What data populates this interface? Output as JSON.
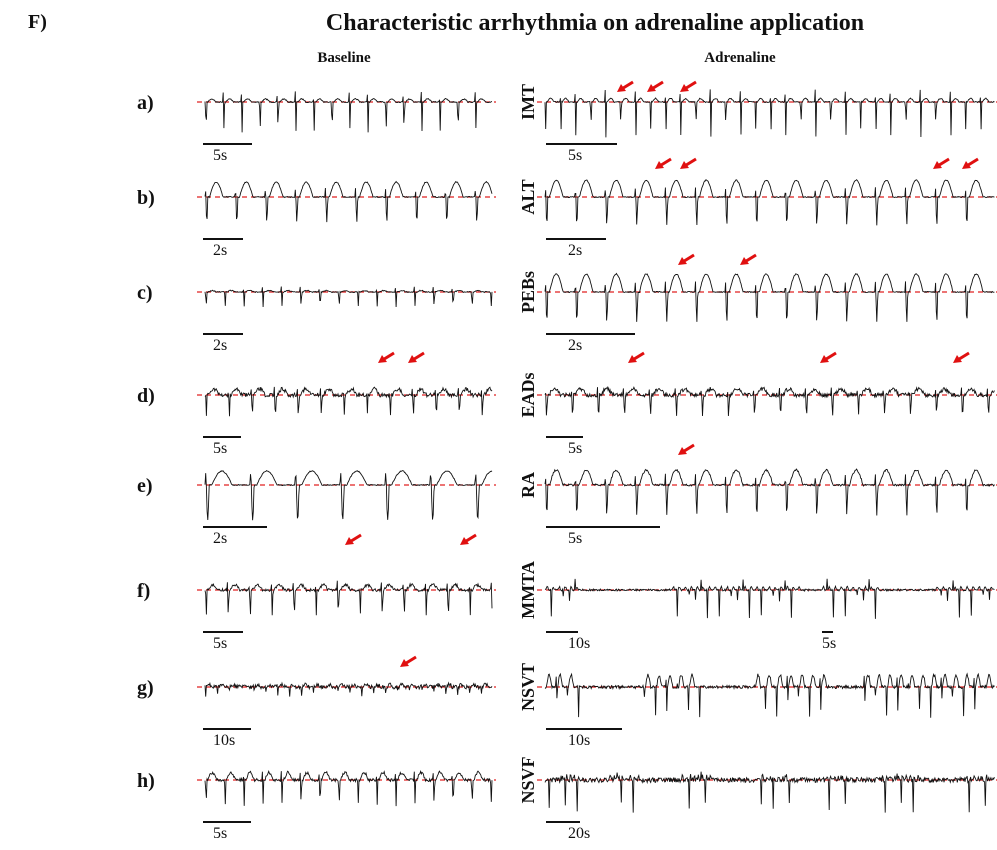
{
  "panel_label": "F)",
  "title": "Characteristic arrhythmia on adrenaline application",
  "column_headers": [
    "Baseline",
    "Adrenaline"
  ],
  "rows": [
    {
      "label": "a)",
      "baseline_scale": "5s",
      "arrhythmia": "IMT",
      "adrenaline_scales": [
        "5s"
      ]
    },
    {
      "label": "b)",
      "baseline_scale": "2s",
      "arrhythmia": "ALT",
      "adrenaline_scales": [
        "2s"
      ]
    },
    {
      "label": "c)",
      "baseline_scale": "2s",
      "arrhythmia": "PEBs",
      "adrenaline_scales": [
        "2s"
      ]
    },
    {
      "label": "d)",
      "baseline_scale": "5s",
      "arrhythmia": "EADs",
      "adrenaline_scales": [
        "5s"
      ]
    },
    {
      "label": "e)",
      "baseline_scale": "2s",
      "arrhythmia": "RA",
      "adrenaline_scales": [
        "5s"
      ]
    },
    {
      "label": "f)",
      "baseline_scale": "5s",
      "arrhythmia": "MMTA",
      "adrenaline_scales": [
        "10s",
        "5s"
      ]
    },
    {
      "label": "g)",
      "baseline_scale": "10s",
      "arrhythmia": "NSVT",
      "adrenaline_scales": [
        "10s"
      ]
    },
    {
      "label": "h)",
      "baseline_scale": "5s",
      "arrhythmia": "NSVF",
      "adrenaline_scales": [
        "20s"
      ]
    }
  ]
}
